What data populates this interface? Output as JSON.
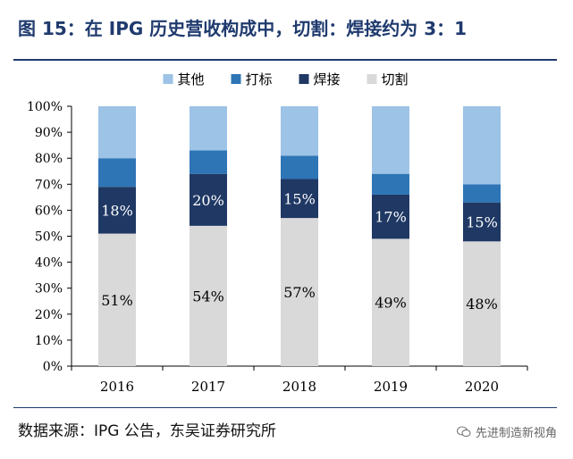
{
  "header": {
    "title": "图 15：在 IPG 历史营收构成中，切割：焊接约为 3：1"
  },
  "footer": {
    "source": "数据来源：IPG 公告，东吴证券研究所",
    "watermark": "先进制造新视角"
  },
  "icons": {
    "watermark_icon": "wechat-icon"
  },
  "chart_data": {
    "type": "bar",
    "stacked": true,
    "categories": [
      "2016",
      "2017",
      "2018",
      "2019",
      "2020"
    ],
    "series": [
      {
        "name": "切割",
        "color": "#d9d9d9",
        "values": [
          51,
          54,
          57,
          49,
          48
        ],
        "labels": [
          "51%",
          "54%",
          "57%",
          "49%",
          "48%"
        ]
      },
      {
        "name": "焊接",
        "color": "#1f3864",
        "values": [
          18,
          20,
          15,
          17,
          15
        ],
        "labels": [
          "18%",
          "20%",
          "15%",
          "17%",
          "15%"
        ]
      },
      {
        "name": "打标",
        "color": "#2e75b6",
        "values": [
          11,
          9,
          9,
          8,
          7
        ],
        "labels": []
      },
      {
        "name": "其他",
        "color": "#9dc3e6",
        "values": [
          20,
          17,
          19,
          26,
          30
        ],
        "labels": []
      }
    ],
    "legend_order": [
      "其他",
      "打标",
      "焊接",
      "切割"
    ],
    "ylim": [
      0,
      100
    ],
    "yticks": [
      "0%",
      "10%",
      "20%",
      "30%",
      "40%",
      "50%",
      "60%",
      "70%",
      "80%",
      "90%",
      "100%"
    ],
    "legend_position": "top",
    "grid": false
  }
}
